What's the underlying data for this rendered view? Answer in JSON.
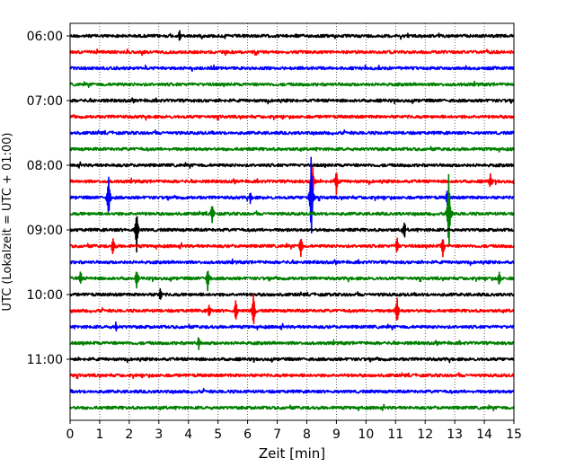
{
  "chart_data": {
    "type": "line",
    "subtype": "helicorder",
    "xlabel": "Zeit  [min]",
    "ylabel": "UTC (Lokalzeit = UTC + 01:00)",
    "xlim": [
      0,
      15
    ],
    "x_ticks": [
      0,
      1,
      2,
      3,
      4,
      5,
      6,
      7,
      8,
      9,
      10,
      11,
      12,
      13,
      14,
      15
    ],
    "y_tick_labels": [
      "06:00",
      "07:00",
      "08:00",
      "09:00",
      "10:00",
      "11:00"
    ],
    "grid": "vertical dotted",
    "trace_minutes": 15,
    "trace_start": "06:00",
    "colors": [
      "#000000",
      "#ff0000",
      "#0000ff",
      "#008000"
    ],
    "traces": [
      {
        "start": "06:00",
        "events": [
          {
            "t": 3.7,
            "amp": 0.4
          }
        ]
      },
      {
        "start": "06:15",
        "events": []
      },
      {
        "start": "06:30",
        "events": []
      },
      {
        "start": "06:45",
        "events": []
      },
      {
        "start": "07:00",
        "events": []
      },
      {
        "start": "07:15",
        "events": []
      },
      {
        "start": "07:30",
        "events": []
      },
      {
        "start": "07:45",
        "events": []
      },
      {
        "start": "08:00",
        "events": []
      },
      {
        "start": "08:15",
        "events": [
          {
            "t": 8.2,
            "amp": 1.0
          },
          {
            "t": 9.0,
            "amp": 0.8
          },
          {
            "t": 14.2,
            "amp": 0.5
          }
        ]
      },
      {
        "start": "08:30",
        "events": [
          {
            "t": 1.3,
            "amp": 1.4
          },
          {
            "t": 6.1,
            "amp": 0.4
          },
          {
            "t": 8.15,
            "amp": 3.0
          },
          {
            "t": 12.75,
            "amp": 0.5
          }
        ]
      },
      {
        "start": "08:45",
        "events": [
          {
            "t": 4.8,
            "amp": 0.6
          },
          {
            "t": 12.8,
            "amp": 2.8
          }
        ]
      },
      {
        "start": "09:00",
        "events": [
          {
            "t": 2.25,
            "amp": 1.3
          },
          {
            "t": 11.3,
            "amp": 0.5
          }
        ]
      },
      {
        "start": "09:15",
        "events": [
          {
            "t": 1.45,
            "amp": 0.6
          },
          {
            "t": 7.8,
            "amp": 0.7
          },
          {
            "t": 11.05,
            "amp": 0.5
          },
          {
            "t": 12.6,
            "amp": 0.6
          }
        ]
      },
      {
        "start": "09:30",
        "events": []
      },
      {
        "start": "09:45",
        "events": [
          {
            "t": 0.35,
            "amp": 0.5
          },
          {
            "t": 2.25,
            "amp": 0.5
          },
          {
            "t": 4.65,
            "amp": 0.7
          },
          {
            "t": 14.5,
            "amp": 0.4
          }
        ]
      },
      {
        "start": "10:00",
        "events": [
          {
            "t": 3.05,
            "amp": 0.5
          }
        ]
      },
      {
        "start": "10:15",
        "events": [
          {
            "t": 4.7,
            "amp": 0.4
          },
          {
            "t": 5.6,
            "amp": 0.7
          },
          {
            "t": 6.2,
            "amp": 1.1
          },
          {
            "t": 11.05,
            "amp": 0.9
          }
        ]
      },
      {
        "start": "10:30",
        "events": [
          {
            "t": 1.55,
            "amp": 0.3
          }
        ]
      },
      {
        "start": "10:45",
        "events": [
          {
            "t": 4.35,
            "amp": 0.4
          }
        ]
      },
      {
        "start": "11:00",
        "events": []
      },
      {
        "start": "11:15",
        "events": []
      },
      {
        "start": "11:30",
        "events": []
      },
      {
        "start": "11:45",
        "events": []
      }
    ]
  }
}
